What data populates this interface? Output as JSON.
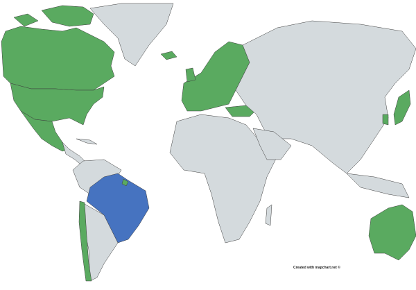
{
  "map": {
    "type": "world choropleth",
    "colors": {
      "highlight_primary": "#4673c0",
      "highlight_secondary": "#5aaa60",
      "other": "#d4dadd",
      "border": "#3c3c3c"
    },
    "primary_country": "Brazil",
    "secondary_countries": [
      "Canada",
      "United States",
      "Mexico",
      "Iceland",
      "European countries",
      "Turkey",
      "Chile",
      "Australia",
      "Japan",
      "South Korea",
      "French Guiana"
    ],
    "credit": "Created with mapchart.net ©"
  }
}
